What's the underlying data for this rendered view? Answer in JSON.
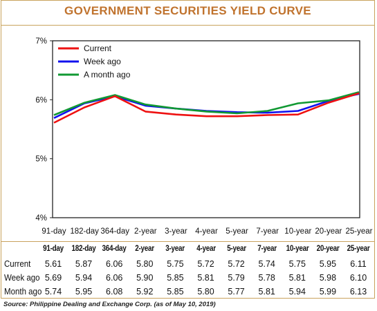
{
  "title": "GOVERNMENT SECURITIES YIELD CURVE",
  "source": "Source: Philippine Dealing and Exchange Corp. (as of May 10, 2019)",
  "colors": {
    "Current": "#ee1111",
    "Week ago": "#1111ee",
    "A month ago": "#119933",
    "accent": "#c0732e",
    "border": "#c9a25c"
  },
  "chart_data": {
    "type": "line",
    "categories": [
      "91-day",
      "182-day",
      "364-day",
      "2-year",
      "3-year",
      "4-year",
      "5-year",
      "7-year",
      "10-year",
      "20-year",
      "25-year"
    ],
    "y_ticks": [
      "7%",
      "6%",
      "5%",
      "4%"
    ],
    "ylim": [
      4,
      7
    ],
    "legend_position": "top-left",
    "series": [
      {
        "name": "Current",
        "color": "#ee1111",
        "values": [
          5.61,
          5.87,
          6.06,
          5.8,
          5.75,
          5.72,
          5.72,
          5.74,
          5.75,
          5.95,
          6.11
        ]
      },
      {
        "name": "Week ago",
        "color": "#1111ee",
        "values": [
          5.69,
          5.94,
          6.06,
          5.9,
          5.85,
          5.81,
          5.79,
          5.78,
          5.81,
          5.98,
          6.1
        ]
      },
      {
        "name": "A month ago",
        "color": "#119933",
        "values": [
          5.74,
          5.95,
          6.08,
          5.92,
          5.85,
          5.8,
          5.77,
          5.81,
          5.94,
          5.99,
          6.13
        ]
      }
    ]
  },
  "table": {
    "header": [
      "91-day",
      "182-day",
      "364-day",
      "2-year",
      "3-year",
      "4-year",
      "5-year",
      "7-year",
      "10-year",
      "20-year",
      "25-year"
    ],
    "rows": [
      {
        "label": "Current",
        "values": [
          "5.61",
          "5.87",
          "6.06",
          "5.80",
          "5.75",
          "5.72",
          "5.72",
          "5.74",
          "5.75",
          "5.95",
          "6.11"
        ]
      },
      {
        "label": "Week ago",
        "values": [
          "5.69",
          "5.94",
          "6.06",
          "5.90",
          "5.85",
          "5.81",
          "5.79",
          "5.78",
          "5.81",
          "5.98",
          "6.10"
        ]
      },
      {
        "label": "Month ago",
        "values": [
          "5.74",
          "5.95",
          "6.08",
          "5.92",
          "5.85",
          "5.80",
          "5.77",
          "5.81",
          "5.94",
          "5.99",
          "6.13"
        ]
      }
    ]
  }
}
